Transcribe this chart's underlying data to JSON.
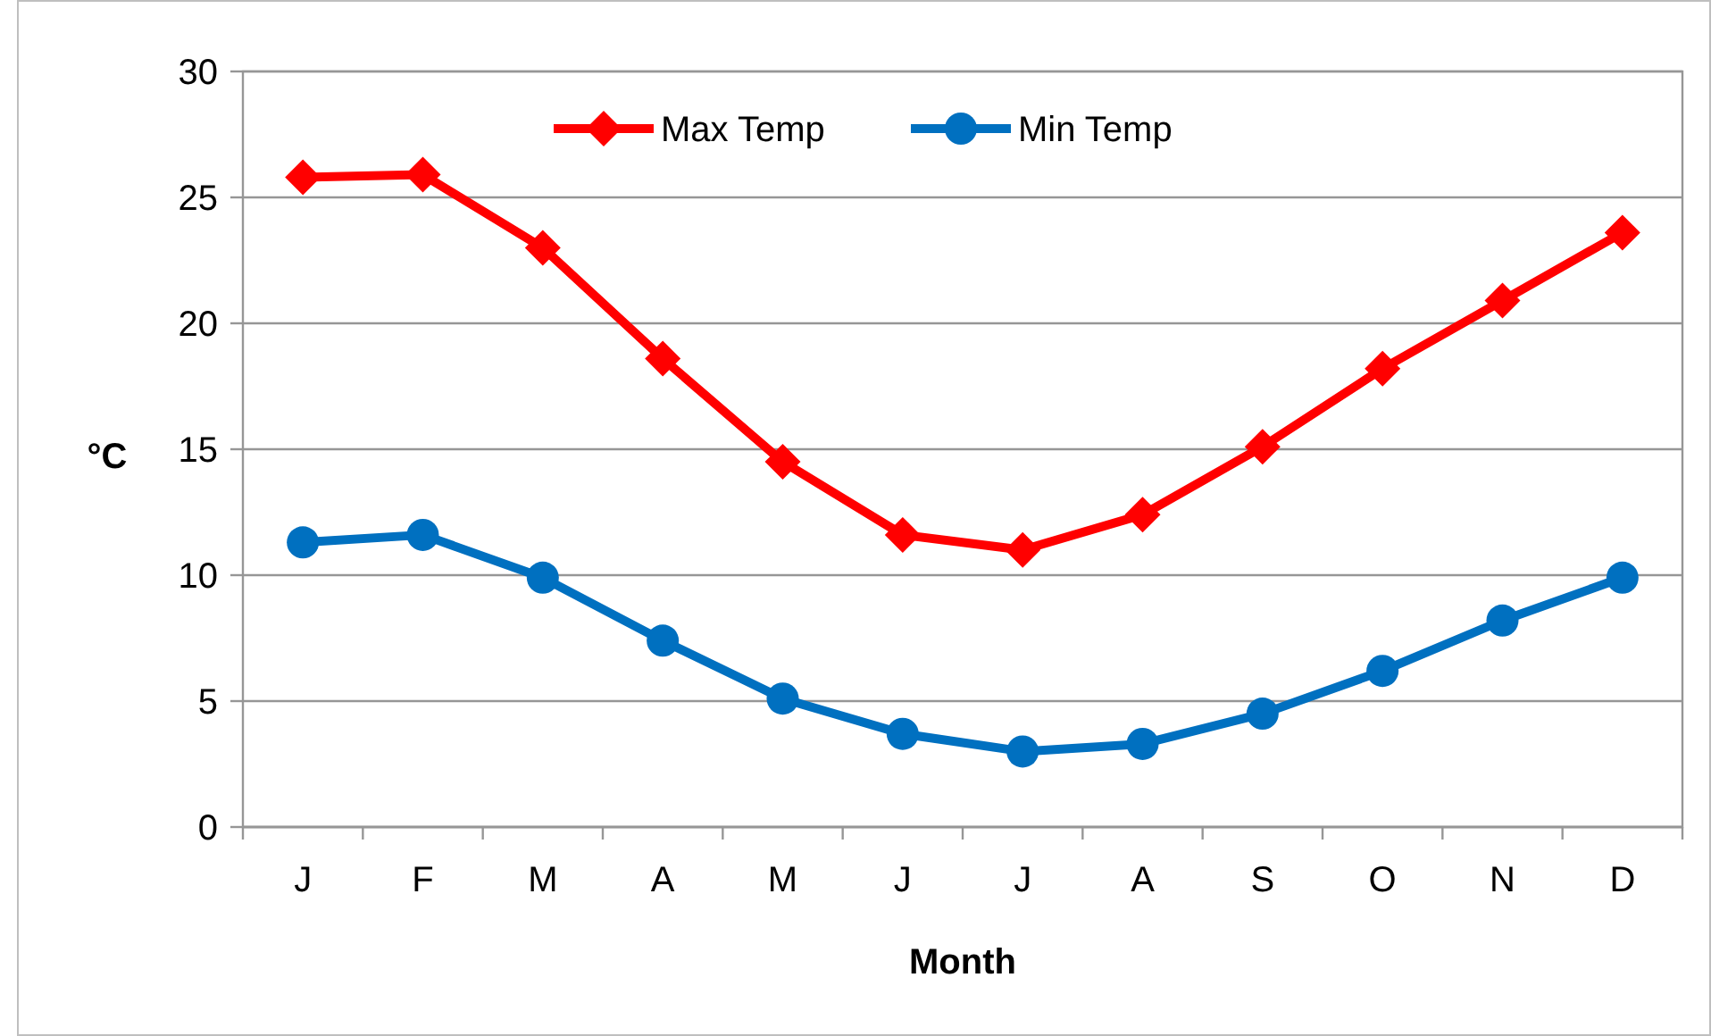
{
  "chart_data": {
    "type": "line",
    "xlabel": "Month",
    "ylabel": "°C",
    "categories": [
      "J",
      "F",
      "M",
      "A",
      "M",
      "J",
      "J",
      "A",
      "S",
      "O",
      "N",
      "D"
    ],
    "series": [
      {
        "name": "Max Temp",
        "color": "#ff0000",
        "marker": "diamond",
        "values": [
          25.8,
          25.9,
          23.0,
          18.6,
          14.5,
          11.6,
          11.0,
          12.4,
          15.1,
          18.2,
          20.9,
          23.6
        ]
      },
      {
        "name": "Min Temp",
        "color": "#0070c0",
        "marker": "circle",
        "values": [
          11.3,
          11.6,
          9.9,
          7.4,
          5.1,
          3.7,
          3.0,
          3.3,
          4.5,
          6.2,
          8.2,
          9.9
        ]
      }
    ],
    "ylim": [
      0,
      30
    ],
    "yticks": [
      0,
      5,
      10,
      15,
      20,
      25,
      30
    ],
    "grid": "y",
    "legend": "top",
    "line_style": "solid"
  }
}
